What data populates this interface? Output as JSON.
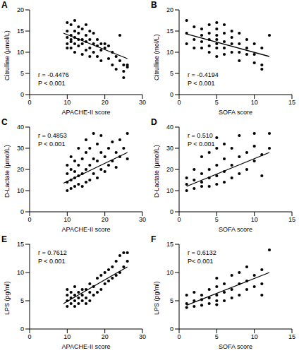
{
  "chart_data": [
    {
      "type": "scatter",
      "title": "A",
      "x_label": "APACHE-II score",
      "y_label": "Citrulline (μmol/L)",
      "color": "#000000",
      "marker": "circle",
      "x": [
        10,
        10,
        10,
        10,
        10,
        11,
        11,
        11,
        11,
        11,
        12,
        12,
        12,
        12,
        12,
        13,
        13,
        13,
        13,
        14,
        14,
        14,
        14,
        15,
        15,
        15,
        15,
        16,
        16,
        16,
        16,
        17,
        17,
        17,
        18,
        18,
        18,
        19,
        19,
        19,
        20,
        20,
        21,
        21,
        22,
        22,
        23,
        23,
        24,
        24,
        25,
        25,
        25,
        26,
        26
      ],
      "values": [
        17,
        15,
        13.5,
        12,
        11,
        16.5,
        14,
        13,
        12.5,
        11,
        17.5,
        15,
        13.5,
        12,
        10,
        16,
        14.5,
        13,
        11.5,
        15.5,
        13,
        12,
        9.5,
        16.5,
        14,
        12.5,
        10.5,
        15,
        13,
        11,
        9,
        14.5,
        12,
        10,
        13,
        11.5,
        9,
        12,
        10.5,
        8,
        11,
        12,
        11.5,
        8.5,
        10,
        7,
        9,
        6,
        14,
        8,
        7,
        5.5,
        4,
        7,
        6.5
      ],
      "fit": {
        "x": [
          9,
          26
        ],
        "values": [
          14.5,
          8.5
        ]
      },
      "xlim": [
        0,
        30
      ],
      "xticks": [
        0,
        10,
        20,
        30
      ],
      "ylim": [
        0,
        20
      ],
      "yticks": [
        0,
        5,
        10,
        15,
        20
      ],
      "annotations": [
        "r = -0.4476",
        "P < 0.001"
      ]
    },
    {
      "type": "scatter",
      "title": "B",
      "x_label": "SOFA score",
      "y_label": "Citrulline (mol/L)",
      "color": "#000000",
      "marker": "circle",
      "x": [
        1,
        1,
        1,
        2,
        2,
        2,
        3,
        3,
        3,
        3,
        4,
        4,
        4,
        4,
        4,
        5,
        5,
        5,
        5,
        5,
        5,
        5,
        6,
        6,
        6,
        6,
        6,
        7,
        7,
        7,
        7,
        8,
        8,
        8,
        8,
        9,
        9,
        9,
        10,
        10,
        10,
        11,
        11,
        11,
        12
      ],
      "values": [
        17.5,
        14.5,
        12,
        16,
        13,
        11,
        15.5,
        14,
        12.5,
        11,
        16.5,
        14.5,
        13,
        11.5,
        10,
        17,
        15.5,
        14,
        13,
        12,
        11,
        9,
        16.5,
        14.5,
        12.5,
        11,
        9.5,
        15,
        13.5,
        12,
        10,
        14.5,
        12,
        10,
        8,
        13,
        11,
        9.5,
        12,
        9.5,
        7.5,
        11,
        7,
        6,
        14
      ],
      "fit": {
        "x": [
          1,
          12
        ],
        "values": [
          14.3,
          9
        ]
      },
      "xlim": [
        0,
        15
      ],
      "xticks": [
        0,
        5,
        10,
        15
      ],
      "ylim": [
        0,
        20
      ],
      "yticks": [
        0,
        5,
        10,
        15,
        20
      ],
      "annotations": [
        "r = -0.4194",
        "P < 0.001"
      ]
    },
    {
      "type": "scatter",
      "title": "C",
      "x_label": "APACHE-II score",
      "y_label": "D-Lactate (μmol/L)",
      "color": "#000000",
      "marker": "circle",
      "x": [
        10,
        10,
        10,
        10,
        11,
        11,
        11,
        11,
        12,
        12,
        12,
        12,
        13,
        13,
        13,
        13,
        14,
        14,
        14,
        15,
        15,
        15,
        15,
        16,
        16,
        16,
        17,
        17,
        17,
        18,
        18,
        18,
        19,
        19,
        19,
        20,
        20,
        21,
        21,
        22,
        22,
        23,
        23,
        24,
        24,
        25,
        26,
        26
      ],
      "values": [
        10,
        14,
        18,
        22,
        11,
        15,
        20,
        26,
        12,
        16,
        19,
        24,
        13,
        17,
        22,
        30,
        12,
        18,
        25,
        14,
        20,
        28,
        34,
        15,
        22,
        30,
        18,
        25,
        37,
        16,
        24,
        32,
        20,
        28,
        36,
        19,
        26,
        22,
        30,
        24,
        33,
        21,
        28,
        26,
        34,
        30,
        25,
        37
      ],
      "fit": {
        "x": [
          9,
          26
        ],
        "values": [
          13.5,
          28
        ]
      },
      "xlim": [
        0,
        30
      ],
      "xticks": [
        0,
        10,
        20,
        30
      ],
      "ylim": [
        0,
        40
      ],
      "yticks": [
        0,
        10,
        20,
        30,
        40
      ],
      "annotations": [
        "r = 0.4853",
        "P < 0.001"
      ]
    },
    {
      "type": "scatter",
      "title": "D",
      "x_label": "SOFA score",
      "y_label": "D-Lactate (μmol/L)",
      "color": "#000000",
      "marker": "circle",
      "x": [
        1,
        1,
        1,
        2,
        2,
        2,
        3,
        3,
        3,
        3,
        4,
        4,
        4,
        4,
        5,
        5,
        5,
        5,
        5,
        6,
        6,
        6,
        6,
        7,
        7,
        7,
        8,
        8,
        8,
        9,
        9,
        10,
        10,
        10,
        11,
        11,
        12,
        12
      ],
      "values": [
        10,
        13,
        16,
        11,
        15,
        20,
        12,
        14,
        18,
        26,
        12,
        16,
        20,
        28,
        13,
        17,
        22,
        30,
        35,
        14,
        19,
        25,
        32,
        16,
        22,
        30,
        18,
        26,
        36,
        20,
        28,
        24,
        31,
        37,
        17,
        27,
        30,
        37
      ],
      "fit": {
        "x": [
          1,
          12
        ],
        "values": [
          12,
          28
        ]
      },
      "xlim": [
        0,
        15
      ],
      "xticks": [
        0,
        5,
        10,
        15
      ],
      "ylim": [
        0,
        40
      ],
      "yticks": [
        0,
        10,
        20,
        30,
        40
      ],
      "annotations": [
        "r = 0.510",
        "P < 0.001"
      ]
    },
    {
      "type": "scatter",
      "title": "E",
      "x_label": "APACHE-II score",
      "y_label": "LPS (pg/ml)",
      "color": "#000000",
      "marker": "circle",
      "x": [
        10,
        10,
        10,
        10,
        11,
        11,
        11,
        12,
        12,
        12,
        12,
        13,
        13,
        13,
        14,
        14,
        14,
        15,
        15,
        15,
        16,
        16,
        16,
        17,
        17,
        18,
        18,
        19,
        19,
        20,
        20,
        21,
        21,
        22,
        22,
        23,
        23,
        24,
        24,
        25,
        25,
        26,
        26
      ],
      "values": [
        4,
        5,
        6,
        7,
        4.5,
        5.5,
        6.5,
        4,
        5,
        6,
        7.5,
        4.5,
        5.5,
        6.5,
        5,
        6,
        7,
        4.5,
        5.5,
        7,
        5,
        6.5,
        8,
        6,
        7.5,
        6.5,
        9,
        7,
        9.5,
        8,
        10,
        8.5,
        10.5,
        9,
        11,
        9.5,
        12,
        10,
        13,
        11,
        13.5,
        12,
        13.5
      ],
      "fit": {
        "x": [
          9,
          26
        ],
        "values": [
          4.5,
          11
        ]
      },
      "xlim": [
        0,
        30
      ],
      "xticks": [
        0,
        10,
        20,
        30
      ],
      "ylim": [
        0,
        15
      ],
      "yticks": [
        0,
        5,
        10,
        15
      ],
      "annotations": [
        "r = 0.7612",
        "P < 0.001"
      ]
    },
    {
      "type": "scatter",
      "title": "F",
      "x_label": "SOFA score",
      "y_label": "LPS (pg/ml)",
      "color": "#000000",
      "marker": "circle",
      "x": [
        1,
        1,
        1,
        2,
        2,
        2,
        3,
        3,
        3,
        4,
        4,
        4,
        5,
        5,
        5,
        5,
        5,
        6,
        6,
        6,
        7,
        7,
        7,
        8,
        8,
        8,
        9,
        9,
        9,
        10,
        10,
        11,
        11,
        11,
        12
      ],
      "values": [
        3.8,
        4.5,
        6,
        4,
        5,
        6.5,
        4.2,
        5.2,
        6,
        4.5,
        5.5,
        7,
        4.3,
        5,
        6,
        7.5,
        9,
        5,
        6.5,
        8,
        5.5,
        7,
        9.5,
        6,
        8,
        10,
        7,
        8.5,
        11,
        7.5,
        9.5,
        8,
        10.5,
        6,
        14
      ],
      "fit": {
        "x": [
          1,
          12
        ],
        "values": [
          4.2,
          10
        ]
      },
      "xlim": [
        0,
        15
      ],
      "xticks": [
        0,
        5,
        10,
        15
      ],
      "ylim": [
        0,
        15
      ],
      "yticks": [
        0,
        5,
        10,
        15
      ],
      "annotations": [
        "r = 0.6132",
        "P< 0.001"
      ]
    }
  ]
}
